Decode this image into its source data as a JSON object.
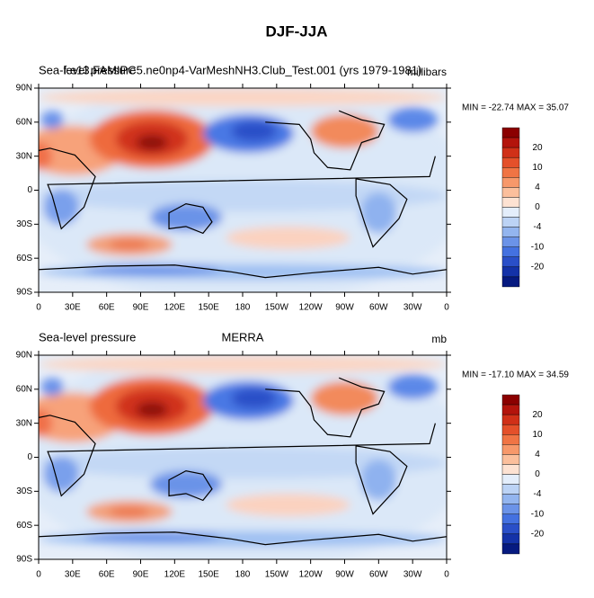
{
  "title": "DJF-JJA",
  "panels": [
    {
      "left_label": "Sea-level pressure",
      "center_label": "f.e13.FAMIPC5.ne0np4-VarMeshNH3.Club_Test.001 (yrs 1979-1981)",
      "right_label": "millibars",
      "stats": "MIN = -22.74 MAX =  35.07",
      "colorbar_labels": [
        "20",
        "10",
        "4",
        "0",
        "-4",
        "-10",
        "-20"
      ]
    },
    {
      "left_label": "Sea-level pressure",
      "center_label": "MERRA",
      "right_label": "mb",
      "stats": "MIN = -17.10 MAX =  34.59",
      "colorbar_labels": [
        "20",
        "10",
        "4",
        "0",
        "-4",
        "-10",
        "-20"
      ]
    }
  ],
  "lat_ticks": [
    "90N",
    "60N",
    "30N",
    "0",
    "30S",
    "60S",
    "90S"
  ],
  "lon_ticks": [
    "0",
    "30E",
    "60E",
    "90E",
    "120E",
    "150E",
    "180",
    "150W",
    "120W",
    "90W",
    "60W",
    "30W",
    "0"
  ]
}
